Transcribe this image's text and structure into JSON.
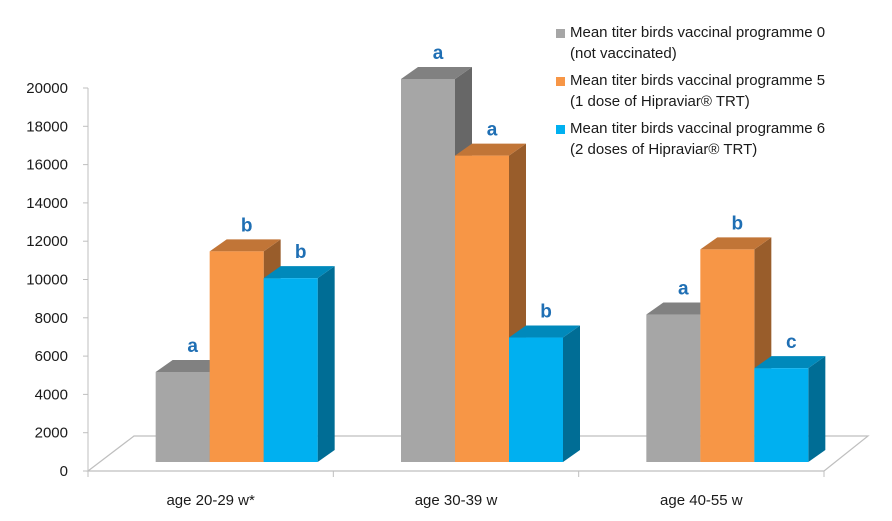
{
  "chart_data": {
    "type": "bar",
    "style": "3d-clustered-column",
    "categories": [
      "age 20-29 w*",
      "age 30-39 w",
      "age 40-55 w"
    ],
    "series": [
      {
        "name": "Mean titer birds vaccinal programme 0",
        "name_line2": "(not vaccinated)",
        "color": "#a6a6a6",
        "values": [
          4700,
          20000,
          7700
        ],
        "significance": [
          "a",
          "a",
          "a"
        ]
      },
      {
        "name": "Mean titer birds vaccinal programme 5",
        "name_line2": "(1 dose of Hipraviar® TRT)",
        "color": "#f79646",
        "values": [
          11000,
          16000,
          11100
        ],
        "significance": [
          "b",
          "a",
          "b"
        ]
      },
      {
        "name": "Mean titer birds vaccinal programme 6",
        "name_line2": "(2 doses of Hipraviar® TRT)",
        "color": "#00b0f0",
        "values": [
          9600,
          6500,
          4900
        ],
        "significance": [
          "b",
          "b",
          "c"
        ]
      }
    ],
    "yticks": [
      0,
      2000,
      4000,
      6000,
      8000,
      10000,
      12000,
      14000,
      16000,
      18000,
      20000
    ],
    "ylim": [
      0,
      20000
    ],
    "xlabel": "",
    "ylabel": "",
    "grid": false,
    "legend_position": "top-right"
  }
}
